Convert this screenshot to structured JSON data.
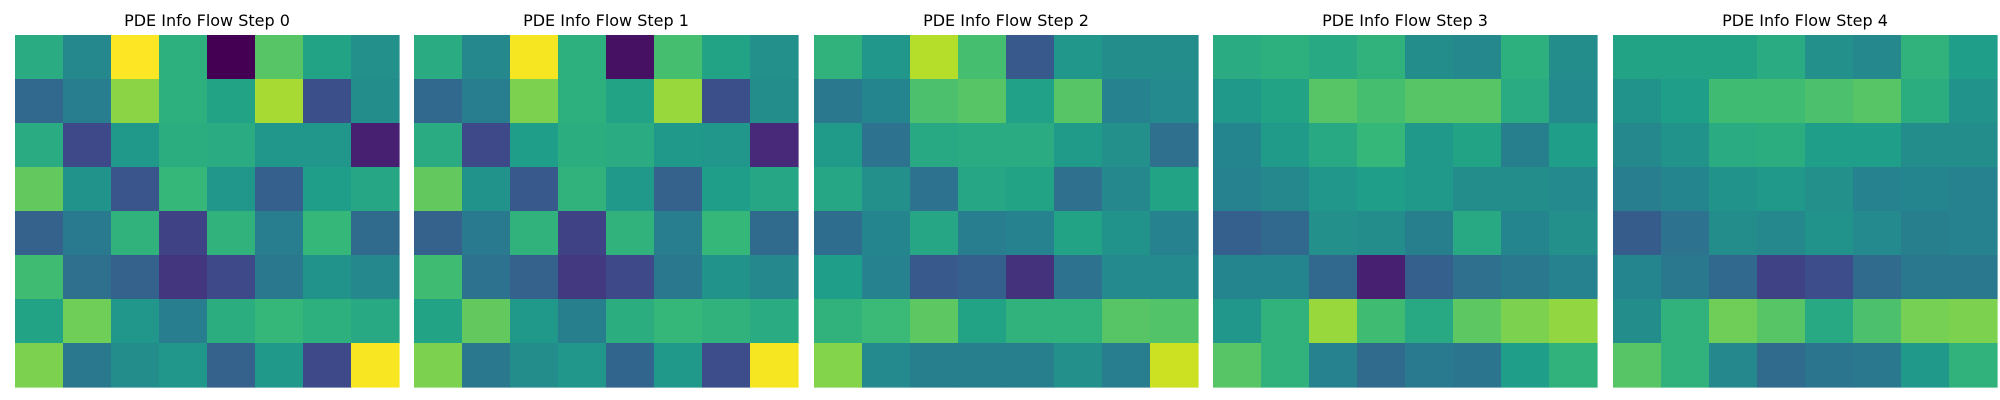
{
  "chart_data": [
    {
      "type": "heatmap",
      "title": "PDE Info Flow Step 0",
      "rows": 8,
      "cols": 8,
      "colormap": "viridis",
      "axes": "off",
      "vrange": [
        0,
        1
      ],
      "values": [
        [
          0.55,
          0.42,
          1.0,
          0.57,
          0.0,
          0.66,
          0.52,
          0.45
        ],
        [
          0.3,
          0.38,
          0.74,
          0.57,
          0.52,
          0.78,
          0.22,
          0.44
        ],
        [
          0.55,
          0.2,
          0.48,
          0.56,
          0.55,
          0.47,
          0.47,
          0.08
        ],
        [
          0.68,
          0.46,
          0.24,
          0.6,
          0.47,
          0.27,
          0.5,
          0.53
        ],
        [
          0.28,
          0.37,
          0.58,
          0.18,
          0.58,
          0.38,
          0.6,
          0.31
        ],
        [
          0.62,
          0.33,
          0.28,
          0.14,
          0.2,
          0.36,
          0.46,
          0.42
        ],
        [
          0.52,
          0.7,
          0.47,
          0.38,
          0.56,
          0.6,
          0.57,
          0.54
        ],
        [
          0.72,
          0.36,
          0.44,
          0.47,
          0.28,
          0.48,
          0.2,
          0.98
        ]
      ]
    },
    {
      "type": "heatmap",
      "title": "PDE Info Flow Step 1",
      "rows": 8,
      "cols": 8,
      "colormap": "viridis",
      "axes": "off",
      "vrange": [
        0,
        1
      ],
      "values": [
        [
          0.55,
          0.42,
          0.97,
          0.57,
          0.04,
          0.63,
          0.52,
          0.45
        ],
        [
          0.3,
          0.38,
          0.72,
          0.57,
          0.52,
          0.76,
          0.22,
          0.44
        ],
        [
          0.55,
          0.2,
          0.5,
          0.56,
          0.55,
          0.48,
          0.47,
          0.1
        ],
        [
          0.68,
          0.46,
          0.25,
          0.58,
          0.48,
          0.28,
          0.5,
          0.53
        ],
        [
          0.28,
          0.37,
          0.58,
          0.18,
          0.58,
          0.38,
          0.6,
          0.31
        ],
        [
          0.62,
          0.34,
          0.28,
          0.15,
          0.2,
          0.36,
          0.46,
          0.42
        ],
        [
          0.52,
          0.68,
          0.48,
          0.39,
          0.56,
          0.6,
          0.58,
          0.55
        ],
        [
          0.72,
          0.36,
          0.44,
          0.47,
          0.29,
          0.48,
          0.21,
          0.97
        ]
      ]
    },
    {
      "type": "heatmap",
      "title": "PDE Info Flow Step 2",
      "rows": 8,
      "cols": 8,
      "colormap": "viridis",
      "axes": "off",
      "vrange": [
        0,
        1
      ],
      "values": [
        [
          0.58,
          0.47,
          0.8,
          0.63,
          0.25,
          0.47,
          0.44,
          0.44
        ],
        [
          0.36,
          0.41,
          0.64,
          0.66,
          0.51,
          0.66,
          0.4,
          0.43
        ],
        [
          0.49,
          0.34,
          0.54,
          0.55,
          0.55,
          0.49,
          0.45,
          0.33
        ],
        [
          0.53,
          0.45,
          0.34,
          0.53,
          0.52,
          0.33,
          0.42,
          0.52
        ],
        [
          0.32,
          0.41,
          0.53,
          0.38,
          0.4,
          0.52,
          0.46,
          0.4
        ],
        [
          0.5,
          0.4,
          0.25,
          0.27,
          0.13,
          0.34,
          0.43,
          0.43
        ],
        [
          0.58,
          0.61,
          0.67,
          0.52,
          0.58,
          0.58,
          0.66,
          0.65
        ],
        [
          0.73,
          0.43,
          0.39,
          0.39,
          0.39,
          0.45,
          0.38,
          0.85
        ]
      ]
    },
    {
      "type": "heatmap",
      "title": "PDE Info Flow Step 3",
      "rows": 8,
      "cols": 8,
      "colormap": "viridis",
      "axes": "off",
      "vrange": [
        0,
        1
      ],
      "values": [
        [
          0.55,
          0.57,
          0.54,
          0.58,
          0.44,
          0.42,
          0.57,
          0.44
        ],
        [
          0.48,
          0.52,
          0.66,
          0.63,
          0.66,
          0.66,
          0.55,
          0.43
        ],
        [
          0.41,
          0.49,
          0.54,
          0.6,
          0.48,
          0.52,
          0.39,
          0.5
        ],
        [
          0.4,
          0.42,
          0.47,
          0.5,
          0.48,
          0.44,
          0.44,
          0.43
        ],
        [
          0.27,
          0.3,
          0.45,
          0.44,
          0.39,
          0.54,
          0.41,
          0.45
        ],
        [
          0.41,
          0.41,
          0.3,
          0.08,
          0.27,
          0.33,
          0.36,
          0.4
        ],
        [
          0.47,
          0.58,
          0.76,
          0.62,
          0.54,
          0.67,
          0.72,
          0.75
        ],
        [
          0.66,
          0.58,
          0.4,
          0.31,
          0.37,
          0.35,
          0.5,
          0.58
        ]
      ]
    },
    {
      "type": "heatmap",
      "title": "PDE Info Flow Step 4",
      "rows": 8,
      "cols": 8,
      "colormap": "viridis",
      "axes": "off",
      "vrange": [
        0,
        1
      ],
      "values": [
        [
          0.52,
          0.52,
          0.52,
          0.55,
          0.45,
          0.42,
          0.58,
          0.5
        ],
        [
          0.46,
          0.5,
          0.62,
          0.62,
          0.64,
          0.66,
          0.56,
          0.46
        ],
        [
          0.42,
          0.46,
          0.55,
          0.56,
          0.5,
          0.5,
          0.44,
          0.44
        ],
        [
          0.38,
          0.41,
          0.46,
          0.48,
          0.45,
          0.4,
          0.41,
          0.4
        ],
        [
          0.26,
          0.34,
          0.44,
          0.42,
          0.46,
          0.43,
          0.39,
          0.4
        ],
        [
          0.41,
          0.36,
          0.3,
          0.18,
          0.21,
          0.31,
          0.36,
          0.36
        ],
        [
          0.44,
          0.58,
          0.7,
          0.66,
          0.54,
          0.64,
          0.71,
          0.72
        ],
        [
          0.66,
          0.58,
          0.42,
          0.31,
          0.35,
          0.36,
          0.48,
          0.58
        ]
      ]
    }
  ]
}
